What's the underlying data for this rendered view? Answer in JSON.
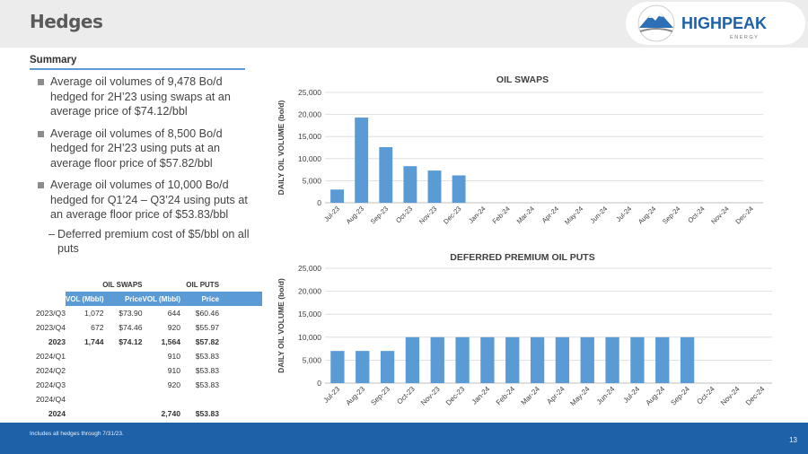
{
  "header": {
    "title": "Hedges"
  },
  "logo": {
    "name": "HIGHPEAK",
    "sub": "E N E R G Y"
  },
  "summary": {
    "heading": "Summary",
    "bullets": [
      "Average oil volumes of 9,478 Bo/d hedged for 2H’23 using swaps at an average price of $74.12/bbl",
      "Average oil volumes of 8,500 Bo/d hedged for 2H’23 using puts at an average floor price of $57.82/bbl",
      "Average oil volumes of 10,000 Bo/d hedged for Q1’24 – Q3’24 using puts at an average floor price of $53.83/bbl"
    ],
    "sub_bullet": "Deferred premium cost of $5/bbl on all puts",
    "dash": "–"
  },
  "table": {
    "group_headers": [
      "OIL SWAPS",
      "OIL PUTS"
    ],
    "columns": [
      "VOL (Mbbl)",
      "Price",
      "VOL (Mbbl)",
      "Price"
    ],
    "rows": [
      {
        "label": "2023/Q3",
        "sv": "1,072",
        "sp": "$73.90",
        "pv": "644",
        "pp": "$60.46",
        "bold": false
      },
      {
        "label": "2023/Q4",
        "sv": "672",
        "sp": "$74.46",
        "pv": "920",
        "pp": "$55.97",
        "bold": false
      },
      {
        "label": "2023",
        "sv": "1,744",
        "sp": "$74.12",
        "pv": "1,564",
        "pp": "$57.82",
        "bold": true
      },
      {
        "label": "2024/Q1",
        "sv": "",
        "sp": "",
        "pv": "910",
        "pp": "$53.83",
        "bold": false
      },
      {
        "label": "2024/Q2",
        "sv": "",
        "sp": "",
        "pv": "910",
        "pp": "$53.83",
        "bold": false
      },
      {
        "label": "2024/Q3",
        "sv": "",
        "sp": "",
        "pv": "920",
        "pp": "$53.83",
        "bold": false
      },
      {
        "label": "2024/Q4",
        "sv": "",
        "sp": "",
        "pv": "",
        "pp": "",
        "bold": false
      },
      {
        "label": "2024",
        "sv": "",
        "sp": "",
        "pv": "2,740",
        "pp": "$53.83",
        "bold": true
      }
    ]
  },
  "chart_data": [
    {
      "type": "bar",
      "title": "OIL SWAPS",
      "ylabel": "DAILY OIL VOLUME (bo/d)",
      "xlabel": "",
      "ylim": [
        0,
        25000
      ],
      "yticks": [
        "0",
        "5,000",
        "10,000",
        "15,000",
        "20,000",
        "25,000"
      ],
      "categories": [
        "Jul-23",
        "Aug-23",
        "Sep-23",
        "Oct-23",
        "Nov-23",
        "Dec-23",
        "Jan-24",
        "Feb-24",
        "Mar-24",
        "Apr-24",
        "May-24",
        "Jun-24",
        "Jul-24",
        "Aug-24",
        "Sep-24",
        "Oct-24",
        "Nov-24",
        "Dec-24"
      ],
      "values": [
        3000,
        19300,
        12600,
        8300,
        7300,
        6200,
        0,
        0,
        0,
        0,
        0,
        0,
        0,
        0,
        0,
        0,
        0,
        0
      ],
      "color": "#5b9bd5",
      "grid": true
    },
    {
      "type": "bar",
      "title": "DEFERRED PREMIUM OIL PUTS",
      "ylabel": "DAILY OIL VOLUME (bo/d)",
      "xlabel": "",
      "ylim": [
        0,
        25000
      ],
      "yticks": [
        "0",
        "5,000",
        "10,000",
        "15,000",
        "20,000",
        "25,000"
      ],
      "categories": [
        "Jul-23",
        "Aug-23",
        "Sep-23",
        "Oct-23",
        "Nov-23",
        "Dec-23",
        "Jan-24",
        "Feb-24",
        "Mar-24",
        "Apr-24",
        "May-24",
        "Jun-24",
        "Jul-24",
        "Aug-24",
        "Sep-24",
        "Oct-24",
        "Nov-24",
        "Dec-24"
      ],
      "values": [
        7000,
        7000,
        7000,
        10000,
        10000,
        10000,
        10000,
        10000,
        10000,
        10000,
        10000,
        10000,
        10000,
        10000,
        10000,
        0,
        0,
        0
      ],
      "color": "#5b9bd5",
      "grid": true
    }
  ],
  "footer": {
    "note": "Includes all hedges through 7/31/23.",
    "page": "13"
  }
}
